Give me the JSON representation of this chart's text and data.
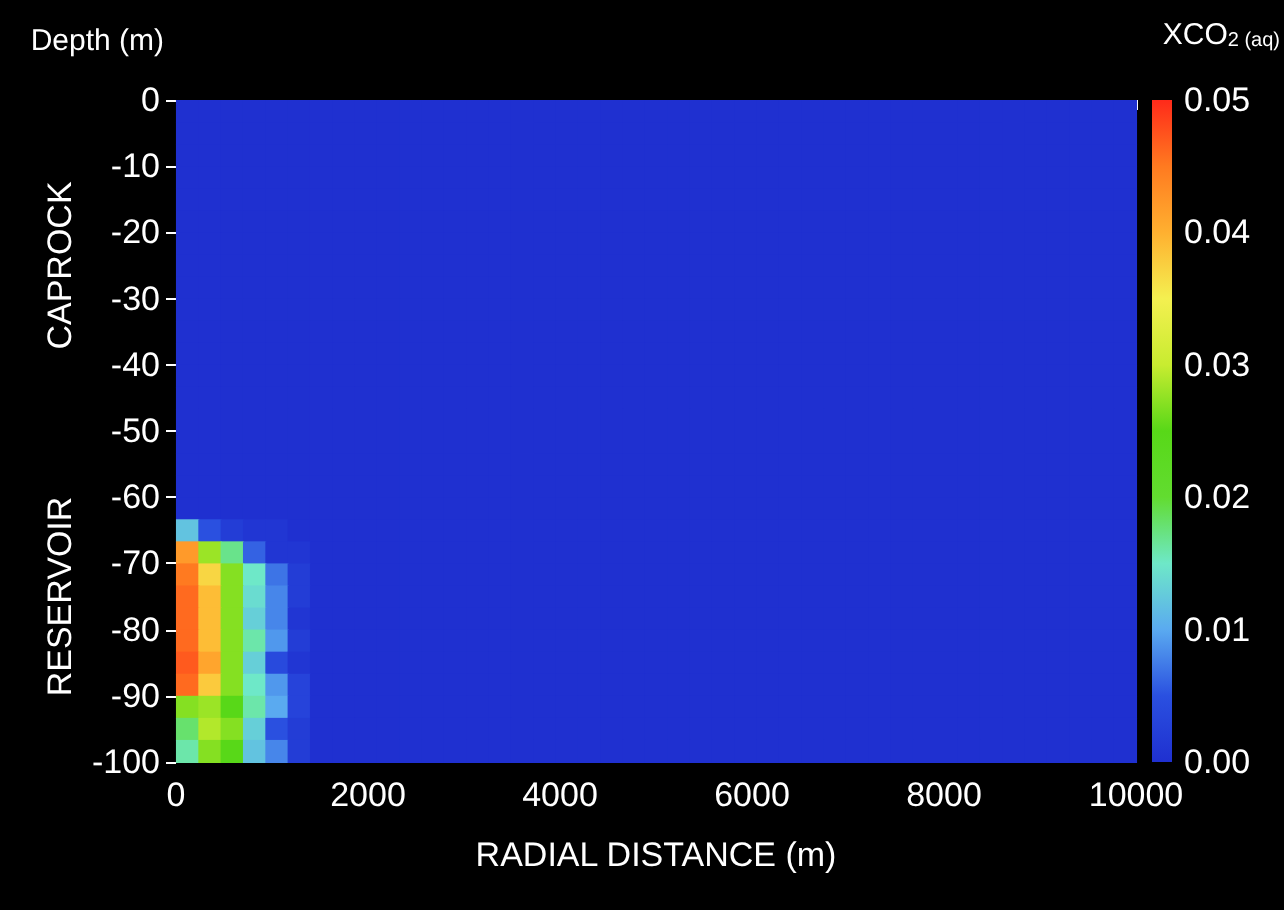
{
  "chart_data": {
    "type": "heatmap",
    "xlabel": "RADIAL DISTANCE (m)",
    "ylabel": "Depth (m)",
    "clabel": "XCO$_{2 (aq)}$",
    "annotations": [
      "CAPROCK",
      "RESERVOIR"
    ],
    "x": [
      116,
      349,
      581,
      814,
      1047,
      1279,
      1512,
      1744,
      1977,
      2209,
      2442,
      2674,
      2907,
      3140,
      3372,
      3605,
      3837,
      4070,
      4302,
      4535,
      4767,
      5000,
      5233,
      5465,
      5698,
      5930,
      6163,
      6395,
      6628,
      6860,
      7093,
      7326,
      7558,
      7791,
      8023,
      8256,
      8488,
      8721,
      8953,
      9186,
      9419,
      9651,
      9884
    ],
    "xlim": [
      0,
      10000
    ],
    "xticks": [
      0,
      2000,
      4000,
      6000,
      8000,
      10000
    ],
    "ylim": [
      -100,
      0
    ],
    "yticks": [
      0,
      -10,
      -20,
      -30,
      -40,
      -50,
      -60,
      -70,
      -80,
      -90,
      -100
    ],
    "clim": [
      0,
      0.05
    ],
    "cticks": [
      {
        "value": 0,
        "label": "0.00"
      },
      0.01,
      0.02,
      0.03,
      0.04,
      0.05
    ],
    "cells": [
      [
        0,
        0,
        0,
        0,
        0,
        0,
        0,
        0,
        0,
        0,
        0,
        0,
        0,
        0,
        0,
        0,
        0,
        0,
        0,
        0,
        0,
        0,
        0,
        0,
        0,
        0,
        0,
        0,
        0,
        0,
        0,
        0,
        0,
        0,
        0,
        0,
        0,
        0,
        0,
        0,
        0,
        0,
        0
      ],
      [
        0,
        0,
        0,
        0,
        0,
        0,
        0,
        0,
        0,
        0,
        0,
        0,
        0,
        0,
        0,
        0,
        0,
        0,
        0,
        0,
        0,
        0,
        0,
        0,
        0,
        0,
        0,
        0,
        0,
        0,
        0,
        0,
        0,
        0,
        0,
        0,
        0,
        0,
        0,
        0,
        0,
        0,
        0
      ],
      [
        0,
        0,
        0,
        0,
        0,
        0,
        0,
        0,
        0,
        0,
        0,
        0,
        0,
        0,
        0,
        0,
        0,
        0,
        0,
        0,
        0,
        0,
        0,
        0,
        0,
        0,
        0,
        0,
        0,
        0,
        0,
        0,
        0,
        0,
        0,
        0,
        0,
        0,
        0,
        0,
        0,
        0,
        0
      ],
      [
        0,
        0,
        0,
        0,
        0,
        0,
        0,
        0,
        0,
        0,
        0,
        0,
        0,
        0,
        0,
        0,
        0,
        0,
        0,
        0,
        0,
        0,
        0,
        0,
        0,
        0,
        0,
        0,
        0,
        0,
        0,
        0,
        0,
        0,
        0,
        0,
        0,
        0,
        0,
        0,
        0,
        0,
        0
      ],
      [
        0,
        0,
        0,
        0,
        0,
        0,
        0,
        0,
        0,
        0,
        0,
        0,
        0,
        0,
        0,
        0,
        0,
        0,
        0,
        0,
        0,
        0,
        0,
        0,
        0,
        0,
        0,
        0,
        0,
        0,
        0,
        0,
        0,
        0,
        0,
        0,
        0,
        0,
        0,
        0,
        0,
        0,
        0
      ],
      [
        0,
        0,
        0,
        0,
        0,
        0,
        0,
        0,
        0,
        0,
        0,
        0,
        0,
        0,
        0,
        0,
        0,
        0,
        0,
        0,
        0,
        0,
        0,
        0,
        0,
        0,
        0,
        0,
        0,
        0,
        0,
        0,
        0,
        0,
        0,
        0,
        0,
        0,
        0,
        0,
        0,
        0,
        0
      ],
      [
        0,
        0,
        0,
        0,
        0,
        0,
        0,
        0,
        0,
        0,
        0,
        0,
        0,
        0,
        0,
        0,
        0,
        0,
        0,
        0,
        0,
        0,
        0,
        0,
        0,
        0,
        0,
        0,
        0,
        0,
        0,
        0,
        0,
        0,
        0,
        0,
        0,
        0,
        0,
        0,
        0,
        0,
        0
      ],
      [
        0,
        0,
        0,
        0,
        0,
        0,
        0,
        0,
        0,
        0,
        0,
        0,
        0,
        0,
        0,
        0,
        0,
        0,
        0,
        0,
        0,
        0,
        0,
        0,
        0,
        0,
        0,
        0,
        0,
        0,
        0,
        0,
        0,
        0,
        0,
        0,
        0,
        0,
        0,
        0,
        0,
        0,
        0
      ],
      [
        0,
        0,
        0,
        0,
        0,
        0,
        0,
        0,
        0,
        0,
        0,
        0,
        0,
        0,
        0,
        0,
        0,
        0,
        0,
        0,
        0,
        0,
        0,
        0,
        0,
        0,
        0,
        0,
        0,
        0,
        0,
        0,
        0,
        0,
        0,
        0,
        0,
        0,
        0,
        0,
        0,
        0,
        0
      ],
      [
        0,
        0,
        0,
        0,
        0,
        0,
        0,
        0,
        0,
        0,
        0,
        0,
        0,
        0,
        0,
        0,
        0,
        0,
        0,
        0,
        0,
        0,
        0,
        0,
        0,
        0,
        0,
        0,
        0,
        0,
        0,
        0,
        0,
        0,
        0,
        0,
        0,
        0,
        0,
        0,
        0,
        0,
        0
      ],
      [
        0,
        0,
        0,
        0,
        0,
        0,
        0,
        0,
        0,
        0,
        0,
        0,
        0,
        0,
        0,
        0,
        0,
        0,
        0,
        0,
        0,
        0,
        0,
        0,
        0,
        0,
        0,
        0,
        0,
        0,
        0,
        0,
        0,
        0,
        0,
        0,
        0,
        0,
        0,
        0,
        0,
        0,
        0
      ],
      [
        0,
        0,
        0,
        0,
        0,
        0,
        0,
        0,
        0,
        0,
        0,
        0,
        0,
        0,
        0,
        0,
        0,
        0,
        0,
        0,
        0,
        0,
        0,
        0,
        0,
        0,
        0,
        0,
        0,
        0,
        0,
        0,
        0,
        0,
        0,
        0,
        0,
        0,
        0,
        0,
        0,
        0,
        0
      ],
      [
        0,
        0,
        0,
        0,
        0,
        0,
        0,
        0,
        0,
        0,
        0,
        0,
        0,
        0,
        0,
        0,
        0,
        0,
        0,
        0,
        0,
        0,
        0,
        0,
        0,
        0,
        0,
        0,
        0,
        0,
        0,
        0,
        0,
        0,
        0,
        0,
        0,
        0,
        0,
        0,
        0,
        0,
        0
      ],
      [
        0,
        0,
        0,
        0,
        0,
        0,
        0,
        0,
        0,
        0,
        0,
        0,
        0,
        0,
        0,
        0,
        0,
        0,
        0,
        0,
        0,
        0,
        0,
        0,
        0,
        0,
        0,
        0,
        0,
        0,
        0,
        0,
        0,
        0,
        0,
        0,
        0,
        0,
        0,
        0,
        0,
        0,
        0
      ],
      [
        0,
        0,
        0,
        0,
        0,
        0,
        0,
        0,
        0,
        0,
        0,
        0,
        0,
        0,
        0,
        0,
        0,
        0,
        0,
        0,
        0,
        0,
        0,
        0,
        0,
        0,
        0,
        0,
        0,
        0,
        0,
        0,
        0,
        0,
        0,
        0,
        0,
        0,
        0,
        0,
        0,
        0,
        0
      ],
      [
        0,
        0,
        0,
        0,
        0,
        0,
        0,
        0,
        0,
        0,
        0,
        0,
        0,
        0,
        0,
        0,
        0,
        0,
        0,
        0,
        0,
        0,
        0,
        0,
        0,
        0,
        0,
        0,
        0,
        0,
        0,
        0,
        0,
        0,
        0,
        0,
        0,
        0,
        0,
        0,
        0,
        0,
        0
      ],
      [
        0,
        0,
        0,
        0,
        0,
        0,
        0,
        0,
        0,
        0,
        0,
        0,
        0,
        0,
        0,
        0,
        0,
        0,
        0,
        0,
        0,
        0,
        0,
        0,
        0,
        0,
        0,
        0,
        0,
        0,
        0,
        0,
        0,
        0,
        0,
        0,
        0,
        0,
        0,
        0,
        0,
        0,
        0
      ],
      [
        0,
        0,
        0,
        0,
        0,
        0,
        0,
        0,
        0,
        0,
        0,
        0,
        0,
        0,
        0,
        0,
        0,
        0,
        0,
        0,
        0,
        0,
        0,
        0,
        0,
        0,
        0,
        0,
        0,
        0,
        0,
        0,
        0,
        0,
        0,
        0,
        0,
        0,
        0,
        0,
        0,
        0,
        0
      ],
      [
        0,
        0,
        0,
        0,
        0,
        0,
        0,
        0,
        0,
        0,
        0,
        0,
        0,
        0,
        0,
        0,
        0,
        0,
        0,
        0,
        0,
        0,
        0,
        0,
        0,
        0,
        0,
        0,
        0,
        0,
        0,
        0,
        0,
        0,
        0,
        0,
        0,
        0,
        0,
        0,
        0,
        0,
        0
      ],
      [
        0.012,
        0.005,
        0.002,
        0.001,
        0.001,
        0,
        0,
        0,
        0,
        0,
        0,
        0,
        0,
        0,
        0,
        0,
        0,
        0,
        0,
        0,
        0,
        0,
        0,
        0,
        0,
        0,
        0,
        0,
        0,
        0,
        0,
        0,
        0,
        0,
        0,
        0,
        0,
        0,
        0,
        0,
        0,
        0,
        0
      ],
      [
        0.042,
        0.028,
        0.017,
        0.006,
        0.001,
        0.001,
        0,
        0,
        0,
        0,
        0,
        0,
        0,
        0,
        0,
        0,
        0,
        0,
        0,
        0,
        0,
        0,
        0,
        0,
        0,
        0,
        0,
        0,
        0,
        0,
        0,
        0,
        0,
        0,
        0,
        0,
        0,
        0,
        0,
        0,
        0,
        0,
        0
      ],
      [
        0.045,
        0.037,
        0.027,
        0.015,
        0.007,
        0.002,
        0,
        0,
        0,
        0,
        0,
        0,
        0,
        0,
        0,
        0,
        0,
        0,
        0,
        0,
        0,
        0,
        0,
        0,
        0,
        0,
        0,
        0,
        0,
        0,
        0,
        0,
        0,
        0,
        0,
        0,
        0,
        0,
        0,
        0,
        0,
        0,
        0
      ],
      [
        0.046,
        0.039,
        0.027,
        0.014,
        0.008,
        0.002,
        0,
        0,
        0,
        0,
        0,
        0,
        0,
        0,
        0,
        0,
        0,
        0,
        0,
        0,
        0,
        0,
        0,
        0,
        0,
        0,
        0,
        0,
        0,
        0,
        0,
        0,
        0,
        0,
        0,
        0,
        0,
        0,
        0,
        0,
        0,
        0,
        0
      ],
      [
        0.046,
        0.039,
        0.027,
        0.013,
        0.008,
        0.001,
        0,
        0,
        0,
        0,
        0,
        0,
        0,
        0,
        0,
        0,
        0,
        0,
        0,
        0,
        0,
        0,
        0,
        0,
        0,
        0,
        0,
        0,
        0,
        0,
        0,
        0,
        0,
        0,
        0,
        0,
        0,
        0,
        0,
        0,
        0,
        0,
        0
      ],
      [
        0.046,
        0.039,
        0.027,
        0.016,
        0.009,
        0.002,
        0,
        0,
        0,
        0,
        0,
        0,
        0,
        0,
        0,
        0,
        0,
        0,
        0,
        0,
        0,
        0,
        0,
        0,
        0,
        0,
        0,
        0,
        0,
        0,
        0,
        0,
        0,
        0,
        0,
        0,
        0,
        0,
        0,
        0,
        0,
        0,
        0
      ],
      [
        0.047,
        0.041,
        0.027,
        0.013,
        0.004,
        0.001,
        0,
        0,
        0,
        0,
        0,
        0,
        0,
        0,
        0,
        0,
        0,
        0,
        0,
        0,
        0,
        0,
        0,
        0,
        0,
        0,
        0,
        0,
        0,
        0,
        0,
        0,
        0,
        0,
        0,
        0,
        0,
        0,
        0,
        0,
        0,
        0,
        0
      ],
      [
        0.046,
        0.038,
        0.027,
        0.015,
        0.009,
        0.003,
        0,
        0,
        0,
        0,
        0,
        0,
        0,
        0,
        0,
        0,
        0,
        0,
        0,
        0,
        0,
        0,
        0,
        0,
        0,
        0,
        0,
        0,
        0,
        0,
        0,
        0,
        0,
        0,
        0,
        0,
        0,
        0,
        0,
        0,
        0,
        0,
        0
      ],
      [
        0.027,
        0.028,
        0.025,
        0.016,
        0.01,
        0.003,
        0,
        0,
        0,
        0,
        0,
        0,
        0,
        0,
        0,
        0,
        0,
        0,
        0,
        0,
        0,
        0,
        0,
        0,
        0,
        0,
        0,
        0,
        0,
        0,
        0,
        0,
        0,
        0,
        0,
        0,
        0,
        0,
        0,
        0,
        0,
        0,
        0
      ],
      [
        0.018,
        0.029,
        0.027,
        0.013,
        0.005,
        0.002,
        0,
        0,
        0,
        0,
        0,
        0,
        0,
        0,
        0,
        0,
        0,
        0,
        0,
        0,
        0,
        0,
        0,
        0,
        0,
        0,
        0,
        0,
        0,
        0,
        0,
        0,
        0,
        0,
        0,
        0,
        0,
        0,
        0,
        0,
        0,
        0,
        0
      ],
      [
        0.016,
        0.027,
        0.025,
        0.012,
        0.008,
        0.002,
        0,
        0,
        0,
        0,
        0,
        0,
        0,
        0,
        0,
        0,
        0,
        0,
        0,
        0,
        0,
        0,
        0,
        0,
        0,
        0,
        0,
        0,
        0,
        0,
        0,
        0,
        0,
        0,
        0,
        0,
        0,
        0,
        0,
        0,
        0,
        0,
        0
      ]
    ]
  }
}
